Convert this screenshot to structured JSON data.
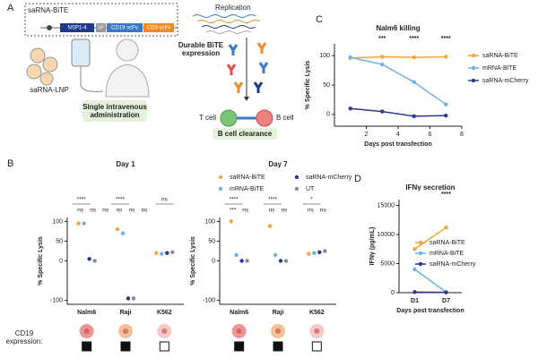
{
  "panels": [
    "A",
    "B",
    "C",
    "D"
  ],
  "panel_a": {
    "construct_title": "saRNA-BiTE",
    "nsp": "NSP1-4",
    "sp": "SP",
    "cd19": "CD19 scFv",
    "cd3": "CD3 scFv",
    "replication": "Replication",
    "durable": "Durable BiTE expression",
    "lnp": "saRNA-LNP",
    "administration": "Single intravenous administration",
    "t_cell": "T cell",
    "b_cell": "B cell",
    "clearance": "B cell clearance"
  },
  "cd19_row": {
    "label": "CD19 expression:",
    "positive": [
      true,
      true,
      false
    ]
  },
  "chart_data": [
    {
      "type": "dot",
      "title": "Day 1",
      "ylabel": "% Specific Lysis",
      "categories": [
        "Nalm6",
        "Raji",
        "K562"
      ],
      "ylim": [
        -110,
        110
      ],
      "yticks": [
        -100,
        0,
        50,
        100
      ],
      "legend": true,
      "series": [
        {
          "name": "saRNA-BiTE",
          "color": "#f5a43e",
          "values": [
            95,
            80,
            20
          ]
        },
        {
          "name": "mRNA-BiTE",
          "color": "#6cb2e6",
          "values": [
            95,
            70,
            18
          ]
        },
        {
          "name": "saRNA-mCherry",
          "color": "#2b3a8f",
          "values": [
            5,
            -95,
            20
          ]
        },
        {
          "name": "UT",
          "color": "#8c8c8c",
          "values": [
            0,
            -95,
            22
          ]
        }
      ],
      "significance": [
        [
          "****",
          "ns",
          "ns",
          "ns"
        ],
        [
          "****",
          "ns",
          "ns",
          "ns"
        ],
        [
          "ns"
        ]
      ]
    },
    {
      "type": "dot",
      "title": "Day 7",
      "ylabel": "% Specific Lysis",
      "categories": [
        "Nalm6",
        "Raji",
        "K562"
      ],
      "ylim": [
        -110,
        110
      ],
      "yticks": [
        -100,
        0,
        50,
        100
      ],
      "legend": false,
      "series": [
        {
          "name": "saRNA-BiTE",
          "color": "#f5a43e",
          "values": [
            100,
            88,
            18
          ]
        },
        {
          "name": "mRNA-BiTE",
          "color": "#6cb2e6",
          "values": [
            15,
            15,
            20
          ]
        },
        {
          "name": "saRNA-mCherry",
          "color": "#2b3a8f",
          "values": [
            0,
            0,
            22
          ]
        },
        {
          "name": "UT",
          "color": "#8c8c8c",
          "values": [
            0,
            0,
            25
          ]
        }
      ],
      "significance": [
        [
          "****",
          "***",
          "ns"
        ],
        [
          "****",
          "ns",
          "ns"
        ],
        [
          "*",
          "ns",
          "ns"
        ]
      ]
    },
    {
      "type": "line",
      "title": "Nalm6 killing",
      "ylabel": "% Specific Lysis",
      "xlabel": "Days post transfection",
      "x": [
        1,
        3,
        5,
        7
      ],
      "xlim": [
        0,
        8
      ],
      "xticks": [
        2,
        4,
        6,
        8
      ],
      "ylim": [
        -20,
        120
      ],
      "yticks": [
        0,
        50,
        100
      ],
      "legend": true,
      "series": [
        {
          "name": "saRNA-BiTE",
          "color": "#f5a43e",
          "values": [
            96,
            98,
            97,
            98
          ]
        },
        {
          "name": "mRNA-BiTE",
          "color": "#6cb2e6",
          "values": [
            97,
            85,
            55,
            17
          ]
        },
        {
          "name": "saRNA-mCherry",
          "color": "#2b3a8f",
          "values": [
            10,
            5,
            -3,
            -2
          ]
        }
      ],
      "annotations": [
        {
          "x": 3,
          "text": "***"
        },
        {
          "x": 5,
          "text": "****"
        },
        {
          "x": 7,
          "text": "****"
        }
      ]
    },
    {
      "type": "line",
      "title": "IFNγ secretion",
      "ylabel": "IFNγ (pg/mL)",
      "xlabel": "Days post transfection",
      "categories": [
        "D1",
        "D7"
      ],
      "ylim": [
        0,
        16000
      ],
      "yticks": [
        0,
        5000,
        10000,
        15000
      ],
      "legend": true,
      "series": [
        {
          "name": "saRNA-BiTE",
          "color": "#f5a43e",
          "values": [
            7500,
            11200
          ]
        },
        {
          "name": "mRNA-BiTE",
          "color": "#6cb2e6",
          "values": [
            4000,
            100
          ]
        },
        {
          "name": "saRNA-mCherry",
          "color": "#2b3a8f",
          "values": [
            100,
            50
          ]
        }
      ],
      "annotations": [
        {
          "x": "D7",
          "text": "****"
        }
      ]
    }
  ]
}
